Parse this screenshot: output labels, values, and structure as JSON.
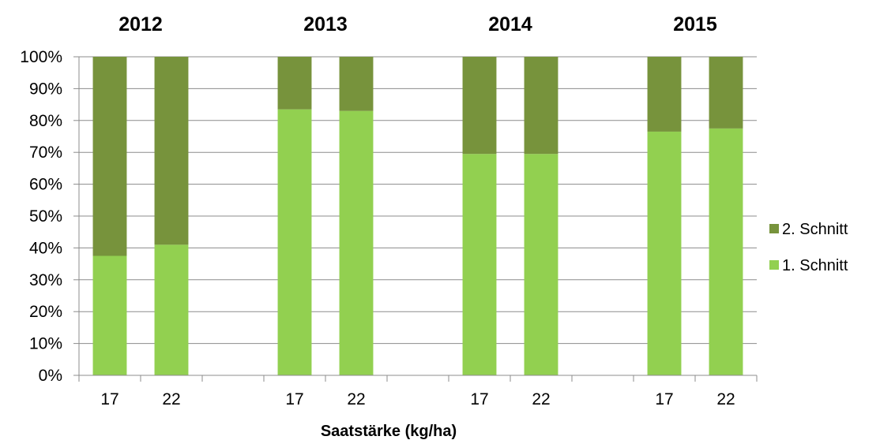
{
  "chart_data": {
    "type": "bar",
    "stacked": true,
    "normalized": true,
    "xlabel": "Saatstärke (kg/ha)",
    "ylabel": "",
    "ylim": [
      0,
      100
    ],
    "y_tick_labels": [
      "0%",
      "10%",
      "20%",
      "30%",
      "40%",
      "50%",
      "60%",
      "70%",
      "80%",
      "90%",
      "100%"
    ],
    "grid": true,
    "legend_position": "right",
    "groups": [
      "2012",
      "2013",
      "2014",
      "2015"
    ],
    "categories": [
      "17",
      "22",
      "17",
      "22",
      "17",
      "22",
      "17",
      "22"
    ],
    "category_group": [
      "2012",
      "2012",
      "2013",
      "2013",
      "2014",
      "2014",
      "2015",
      "2015"
    ],
    "series": [
      {
        "name": "1. Schnitt",
        "color": "#92d050",
        "values": [
          37.5,
          41,
          83.5,
          83,
          69.5,
          69.5,
          76.5,
          77.5
        ]
      },
      {
        "name": "2. Schnitt",
        "color": "#77933c",
        "values": [
          62.5,
          59,
          16.5,
          17,
          30.5,
          30.5,
          23.5,
          22.5
        ]
      }
    ],
    "legend": [
      "2. Schnitt",
      "1. Schnitt"
    ]
  }
}
